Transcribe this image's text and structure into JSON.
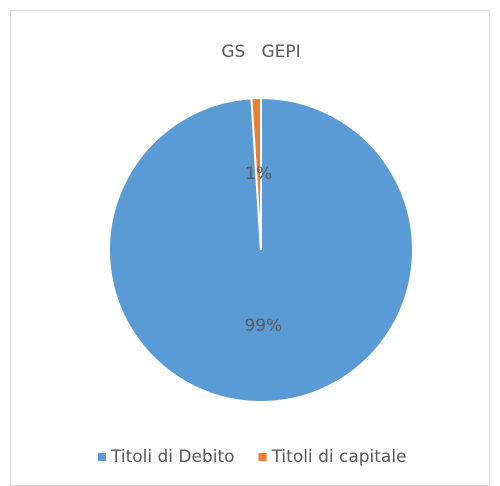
{
  "chart_data": {
    "type": "pie",
    "title": "GS   GEPI",
    "categories": [
      "Titoli di Debito",
      "Titoli di capitale"
    ],
    "values": [
      99,
      1
    ],
    "value_labels": [
      "99%",
      "1%"
    ],
    "colors": [
      "#5b9bd5",
      "#ed7d31"
    ],
    "legend": "bottom"
  }
}
